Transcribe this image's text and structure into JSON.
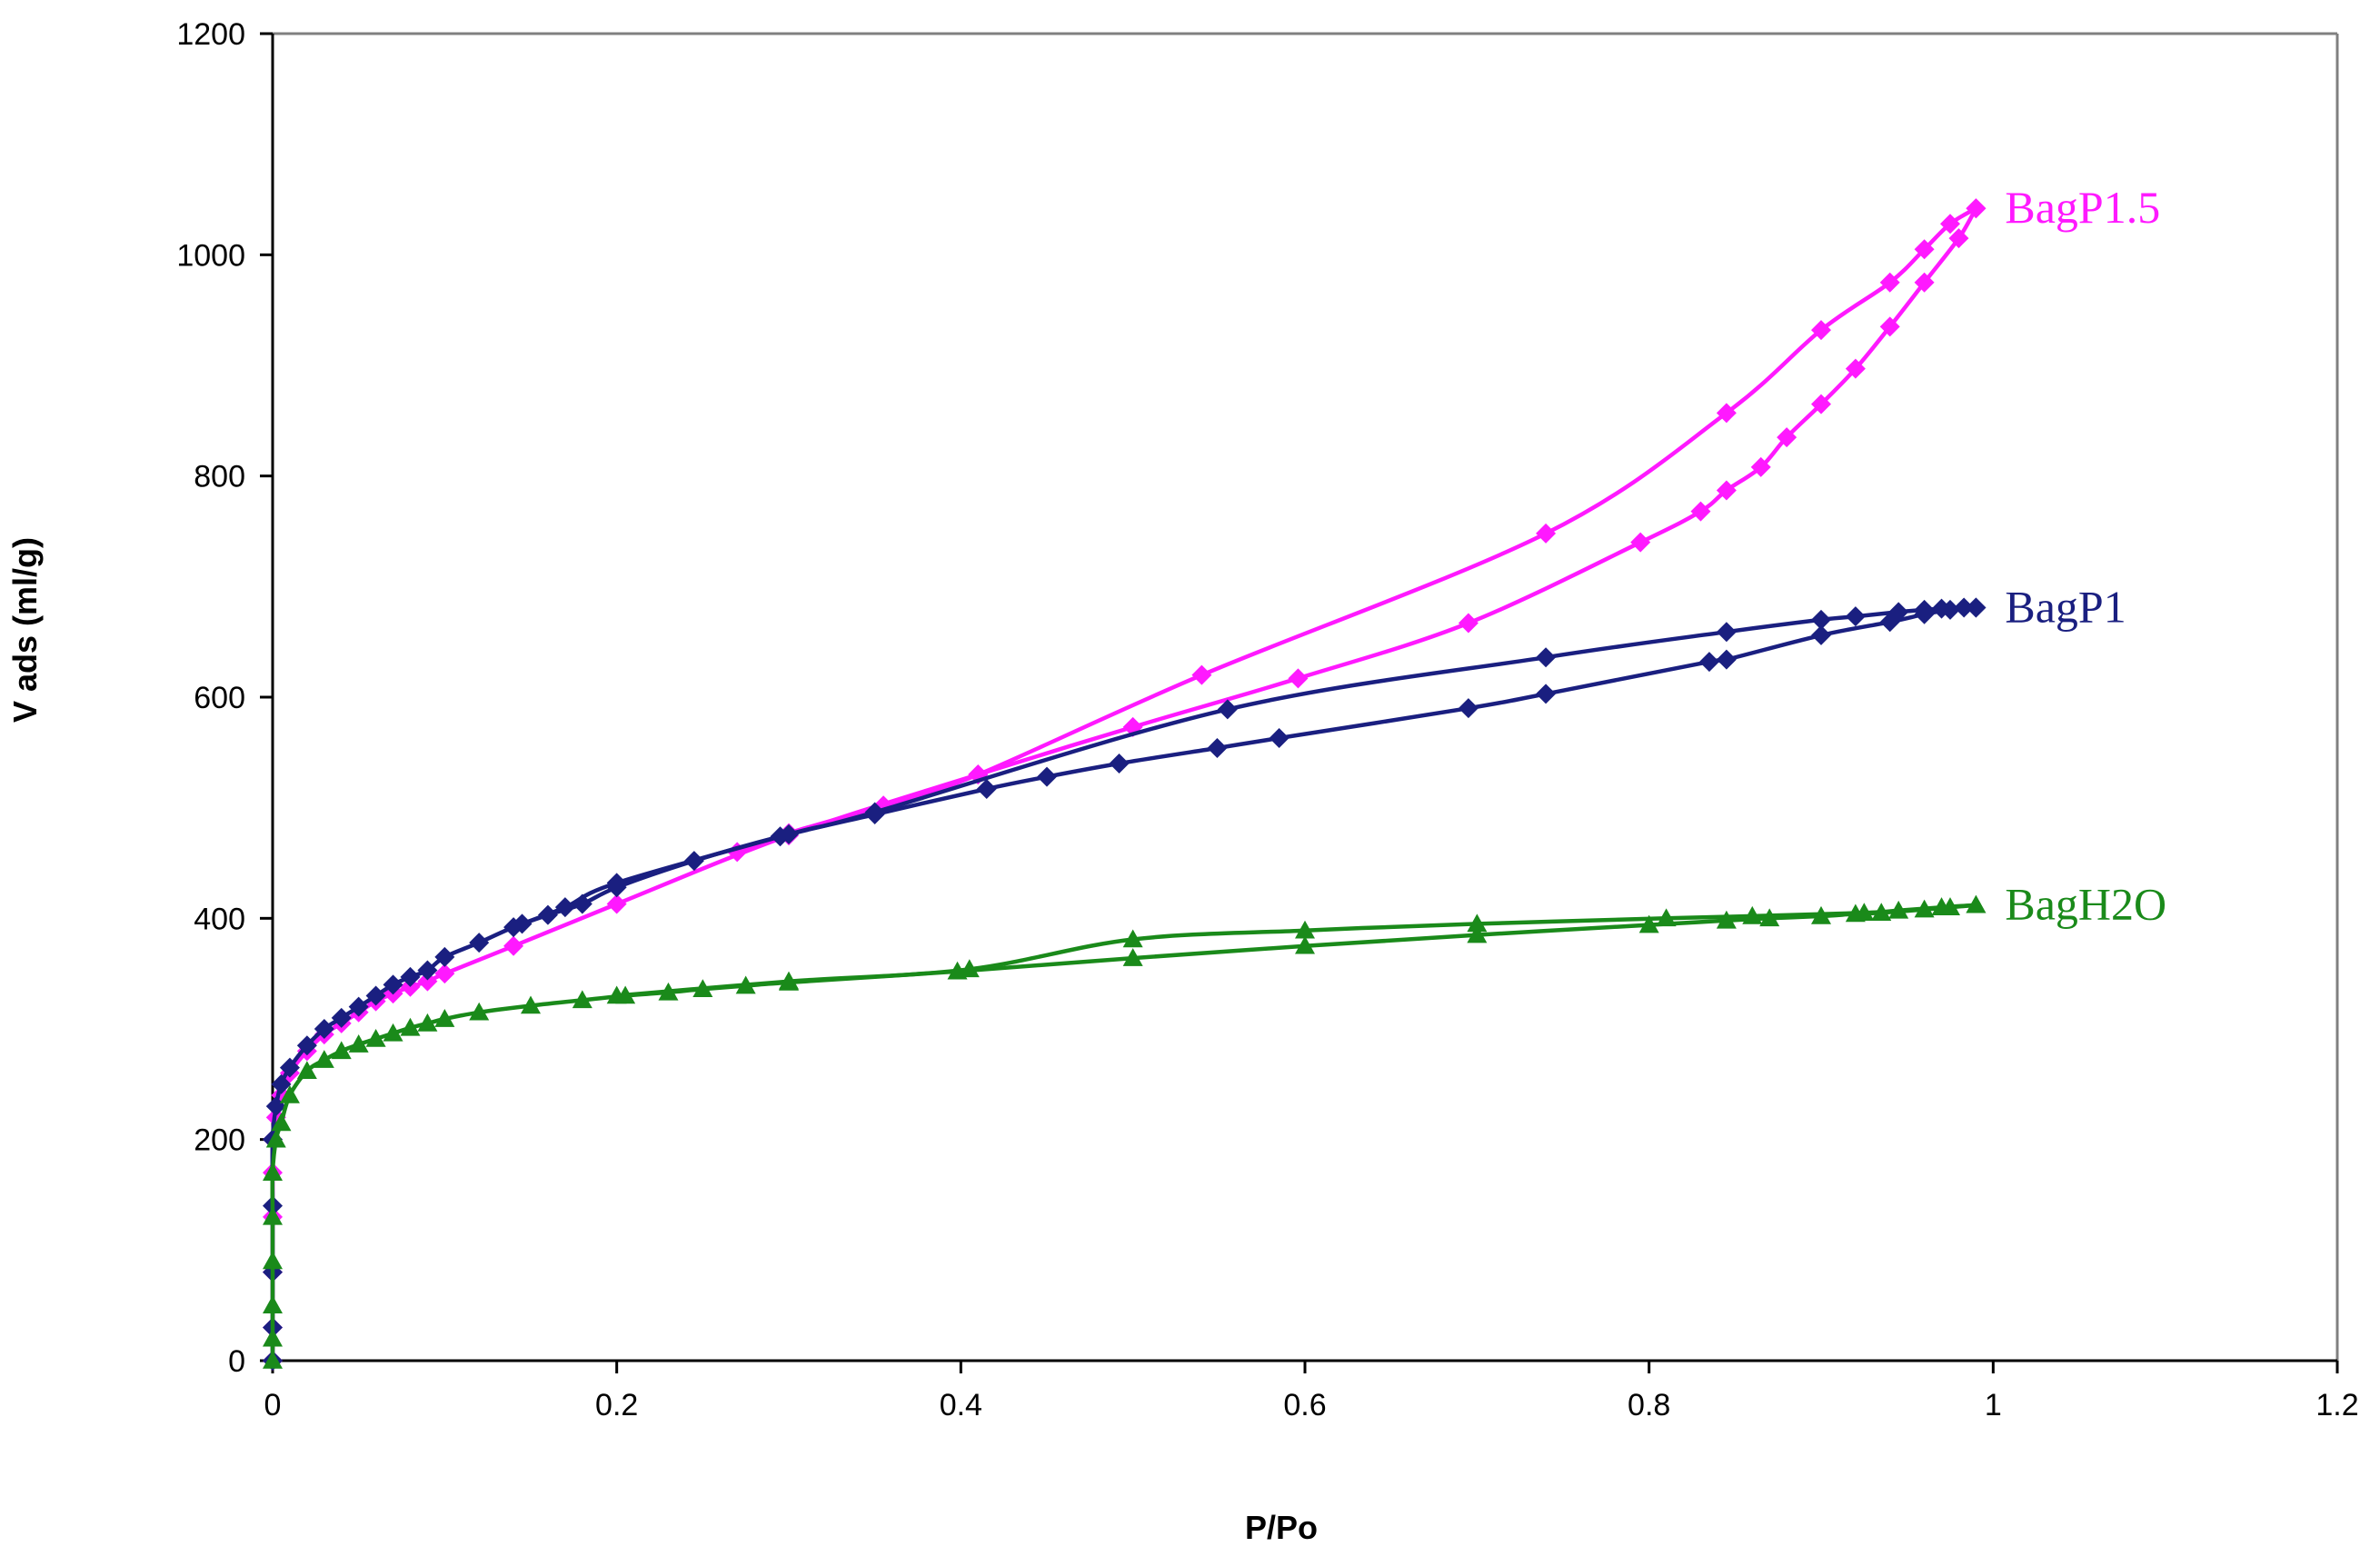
{
  "chart_data": {
    "type": "scatter",
    "xlabel": "P/Po",
    "ylabel": "V ads (ml/g)",
    "xlim": [
      0,
      1.2
    ],
    "ylim": [
      0,
      1200
    ],
    "x_ticks": [
      "0",
      "0.2",
      "0.4",
      "0.6",
      "0.8",
      "1",
      "1.2"
    ],
    "y_ticks": [
      "0",
      "200",
      "400",
      "600",
      "800",
      "1000",
      "1200"
    ],
    "grid": false,
    "legend": "inline labels at right end of each series",
    "series": [
      {
        "name": "BagP1.5",
        "color": "#ff19ff",
        "marker": "diamond",
        "adsorption": [
          [
            0.0,
            0
          ],
          [
            0.0,
            30
          ],
          [
            0.0,
            80
          ],
          [
            0.0,
            130
          ],
          [
            0.0,
            170
          ],
          [
            0.0,
            200
          ],
          [
            0.002,
            220
          ],
          [
            0.005,
            240
          ],
          [
            0.01,
            260
          ],
          [
            0.02,
            280
          ],
          [
            0.03,
            295
          ],
          [
            0.04,
            305
          ],
          [
            0.05,
            315
          ],
          [
            0.06,
            325
          ],
          [
            0.07,
            332
          ],
          [
            0.08,
            338
          ],
          [
            0.09,
            343
          ],
          [
            0.1,
            350
          ],
          [
            0.14,
            375
          ],
          [
            0.2,
            413
          ],
          [
            0.3,
            475
          ],
          [
            0.41,
            530
          ],
          [
            0.5,
            573
          ],
          [
            0.596,
            617
          ],
          [
            0.695,
            667
          ],
          [
            0.795,
            740
          ],
          [
            0.83,
            768
          ],
          [
            0.845,
            787
          ],
          [
            0.865,
            808
          ],
          [
            0.88,
            835
          ],
          [
            0.9,
            865
          ],
          [
            0.92,
            897
          ],
          [
            0.94,
            935
          ],
          [
            0.96,
            975
          ],
          [
            0.98,
            1015
          ],
          [
            0.99,
            1042
          ]
        ],
        "desorption": [
          [
            0.99,
            1042
          ],
          [
            0.975,
            1028
          ],
          [
            0.96,
            1005
          ],
          [
            0.94,
            975
          ],
          [
            0.9,
            932
          ],
          [
            0.845,
            857
          ],
          [
            0.74,
            748
          ],
          [
            0.54,
            620
          ],
          [
            0.41,
            530
          ],
          [
            0.355,
            502
          ],
          [
            0.3,
            477
          ],
          [
            0.27,
            460
          ]
        ]
      },
      {
        "name": "BagP1",
        "color": "#1a1f80",
        "marker": "diamond",
        "adsorption": [
          [
            0.0,
            0
          ],
          [
            0.0,
            30
          ],
          [
            0.0,
            80
          ],
          [
            0.0,
            140
          ],
          [
            0.0,
            200
          ],
          [
            0.002,
            230
          ],
          [
            0.005,
            250
          ],
          [
            0.01,
            265
          ],
          [
            0.02,
            285
          ],
          [
            0.03,
            300
          ],
          [
            0.04,
            310
          ],
          [
            0.05,
            320
          ],
          [
            0.06,
            330
          ],
          [
            0.07,
            340
          ],
          [
            0.08,
            347
          ],
          [
            0.09,
            353
          ],
          [
            0.1,
            365
          ],
          [
            0.12,
            378
          ],
          [
            0.14,
            392
          ],
          [
            0.16,
            403
          ],
          [
            0.18,
            413
          ],
          [
            0.2,
            428
          ],
          [
            0.245,
            452
          ],
          [
            0.295,
            474
          ],
          [
            0.35,
            494
          ],
          [
            0.415,
            517
          ],
          [
            0.45,
            528
          ],
          [
            0.492,
            540
          ],
          [
            0.549,
            554
          ],
          [
            0.585,
            563
          ],
          [
            0.695,
            590
          ],
          [
            0.74,
            603
          ],
          [
            0.835,
            632
          ],
          [
            0.845,
            634
          ],
          [
            0.9,
            656
          ],
          [
            0.94,
            668
          ],
          [
            0.96,
            675
          ],
          [
            0.975,
            679
          ],
          [
            0.99,
            681
          ]
        ],
        "desorption": [
          [
            0.99,
            681
          ],
          [
            0.983,
            681
          ],
          [
            0.97,
            680
          ],
          [
            0.96,
            679
          ],
          [
            0.945,
            677
          ],
          [
            0.92,
            673
          ],
          [
            0.9,
            670
          ],
          [
            0.845,
            659
          ],
          [
            0.74,
            636
          ],
          [
            0.555,
            589
          ],
          [
            0.35,
            496
          ],
          [
            0.3,
            476
          ],
          [
            0.2,
            432
          ],
          [
            0.17,
            410
          ],
          [
            0.145,
            395
          ]
        ]
      },
      {
        "name": "BagH2O",
        "color": "#1a8a1a",
        "marker": "triangle",
        "adsorption": [
          [
            0.0,
            0
          ],
          [
            0.0,
            20
          ],
          [
            0.0,
            50
          ],
          [
            0.0,
            90
          ],
          [
            0.0,
            130
          ],
          [
            0.0,
            170
          ],
          [
            0.002,
            200
          ],
          [
            0.005,
            215
          ],
          [
            0.01,
            240
          ],
          [
            0.02,
            262
          ],
          [
            0.03,
            272
          ],
          [
            0.04,
            280
          ],
          [
            0.05,
            286
          ],
          [
            0.06,
            291
          ],
          [
            0.07,
            296
          ],
          [
            0.08,
            301
          ],
          [
            0.09,
            305
          ],
          [
            0.1,
            309
          ],
          [
            0.12,
            315
          ],
          [
            0.15,
            321
          ],
          [
            0.18,
            326
          ],
          [
            0.205,
            330
          ],
          [
            0.23,
            333
          ],
          [
            0.25,
            336
          ],
          [
            0.275,
            339
          ],
          [
            0.3,
            342
          ],
          [
            0.398,
            352
          ],
          [
            0.5,
            364
          ],
          [
            0.6,
            375
          ],
          [
            0.7,
            385
          ],
          [
            0.8,
            394
          ],
          [
            0.845,
            398
          ],
          [
            0.87,
            400
          ],
          [
            0.9,
            402
          ],
          [
            0.92,
            404
          ],
          [
            0.935,
            405
          ],
          [
            0.96,
            408
          ],
          [
            0.975,
            410
          ],
          [
            0.99,
            412
          ]
        ],
        "desorption": [
          [
            0.99,
            412
          ],
          [
            0.97,
            410
          ],
          [
            0.945,
            407
          ],
          [
            0.925,
            405
          ],
          [
            0.86,
            402
          ],
          [
            0.81,
            400
          ],
          [
            0.7,
            395
          ],
          [
            0.6,
            389
          ],
          [
            0.5,
            381
          ],
          [
            0.405,
            354
          ],
          [
            0.3,
            343
          ],
          [
            0.2,
            330
          ]
        ]
      }
    ]
  }
}
